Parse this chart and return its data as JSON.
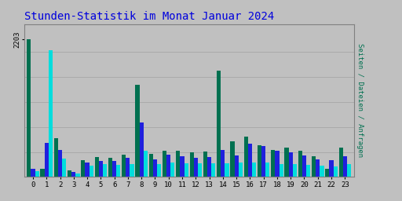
{
  "title": "Stunden-Statistik im Monat Januar 2024",
  "title_color": "#0000dd",
  "title_fontsize": 10,
  "hours": [
    0,
    1,
    2,
    3,
    4,
    5,
    6,
    7,
    8,
    9,
    10,
    11,
    12,
    13,
    14,
    15,
    16,
    17,
    18,
    19,
    20,
    21,
    22,
    23
  ],
  "seiten": [
    2203,
    130,
    620,
    110,
    265,
    315,
    310,
    355,
    1480,
    375,
    425,
    415,
    390,
    405,
    1700,
    575,
    645,
    505,
    435,
    465,
    415,
    325,
    135,
    465
  ],
  "dateien": [
    130,
    550,
    430,
    80,
    230,
    260,
    255,
    300,
    870,
    275,
    350,
    330,
    310,
    320,
    430,
    340,
    535,
    490,
    415,
    400,
    345,
    285,
    270,
    330
  ],
  "anfragen": [
    90,
    2030,
    295,
    50,
    175,
    200,
    195,
    205,
    425,
    205,
    235,
    215,
    215,
    220,
    215,
    225,
    225,
    225,
    210,
    210,
    195,
    175,
    165,
    210
  ],
  "color_seiten": "#007050",
  "color_dateien": "#2020dd",
  "color_anfragen": "#00dddd",
  "background_color": "#c0c0c0",
  "border_color": "#808080",
  "ytick_label": "2203",
  "ytick_value": 2203,
  "bar_width": 0.3,
  "ylim": [
    0,
    2450
  ],
  "grid_levels": [
    400,
    800,
    1200,
    1600,
    2000
  ],
  "grid_color": "#aaaaaa",
  "right_label_seiten": "Seiten",
  "right_label_dateien": "Dateien",
  "right_label_anfragen": "Anfragen",
  "right_label_sep": " / "
}
